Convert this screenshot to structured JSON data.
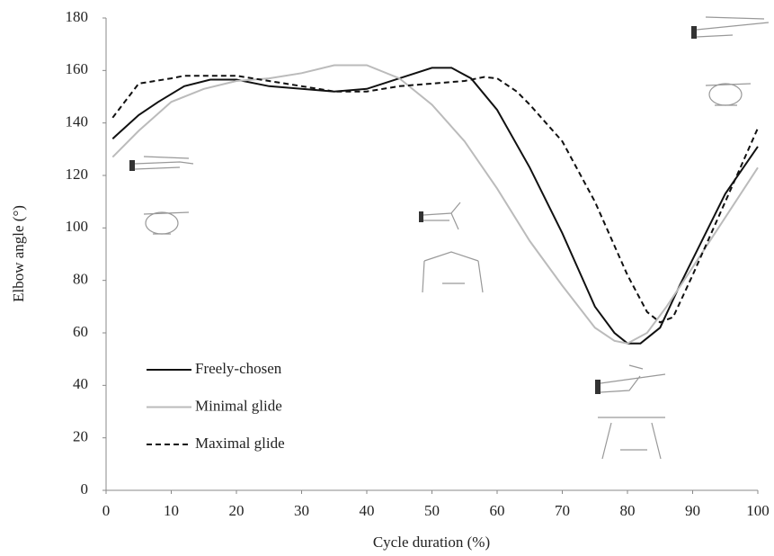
{
  "chart_data": {
    "type": "line",
    "xlabel": "Cycle duration (%)",
    "ylabel": "Elbow angle (°)",
    "xlim": [
      0,
      100
    ],
    "xticks": [
      0,
      10,
      20,
      30,
      40,
      50,
      60,
      70,
      80,
      90,
      100
    ],
    "ylim": [
      0,
      180
    ],
    "yticks": [
      0,
      20,
      40,
      60,
      80,
      100,
      120,
      140,
      160,
      180
    ],
    "grid": false,
    "legend": "lower left",
    "series": [
      {
        "name": "Freely-chosen",
        "color": "#111111",
        "line_style": "solid",
        "x": [
          1,
          5,
          8,
          12,
          16,
          20,
          25,
          30,
          35,
          40,
          45,
          50,
          53,
          56,
          60,
          65,
          70,
          75,
          78,
          80,
          82,
          85,
          88,
          90,
          95,
          100
        ],
        "values": [
          134,
          143,
          148,
          154,
          156.5,
          156.5,
          154,
          153,
          152,
          153,
          157,
          161,
          161,
          157,
          145,
          123,
          98,
          70,
          60,
          56,
          56,
          62,
          78,
          88,
          113,
          131
        ]
      },
      {
        "name": "Minimal glide",
        "color": "#bbbbbb",
        "line_style": "solid",
        "x": [
          1,
          5,
          10,
          15,
          20,
          25,
          30,
          35,
          40,
          45,
          50,
          55,
          60,
          65,
          70,
          75,
          78,
          80,
          83,
          86,
          90,
          95,
          100
        ],
        "values": [
          127,
          137,
          148,
          153,
          156,
          157,
          159,
          162,
          162,
          157,
          147,
          133,
          115,
          95,
          78,
          62,
          57,
          56,
          60,
          70,
          85,
          104,
          123
        ]
      },
      {
        "name": "Maximal glide",
        "color": "#111111",
        "line_style": "dashed",
        "x": [
          1,
          5,
          10,
          12,
          20,
          25,
          30,
          35,
          40,
          45,
          50,
          55,
          58,
          60,
          63,
          65,
          70,
          75,
          80,
          83,
          85,
          87,
          90,
          95,
          100
        ],
        "values": [
          142,
          155,
          157,
          158,
          158,
          156,
          154,
          152,
          152,
          154,
          155,
          156,
          157.5,
          157,
          152,
          147,
          133,
          110,
          82,
          68,
          64,
          66,
          82,
          110,
          138
        ]
      }
    ]
  }
}
